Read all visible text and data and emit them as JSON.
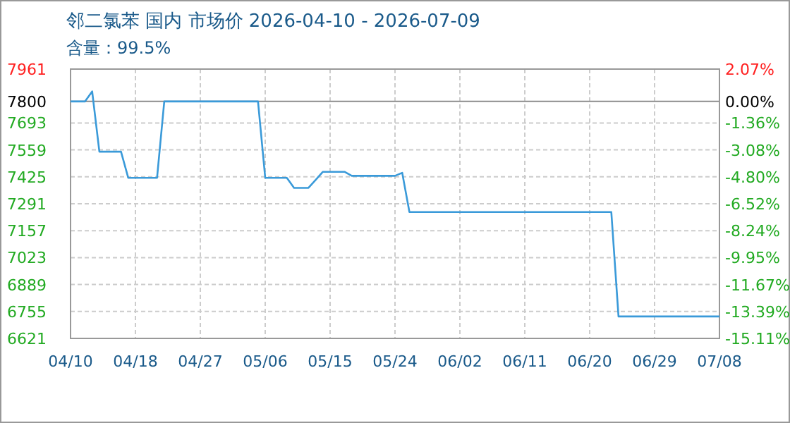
{
  "chart_data": {
    "type": "line",
    "title": "邻二氯苯 国内 市场价 2026-04-10 - 2026-07-09",
    "subtitle": "含量：99.5%",
    "categories": [
      "04/10",
      null,
      null,
      null,
      null,
      null,
      null,
      null,
      null,
      "04/18",
      null,
      null,
      null,
      null,
      null,
      null,
      null,
      null,
      "04/27",
      null,
      null,
      null,
      null,
      null,
      null,
      null,
      null,
      "05/06",
      null,
      null,
      null,
      null,
      null,
      null,
      null,
      null,
      "05/15",
      null,
      null,
      null,
      null,
      null,
      null,
      null,
      null,
      "05/24",
      null,
      null,
      null,
      null,
      null,
      null,
      null,
      null,
      "06/02",
      null,
      null,
      null,
      null,
      null,
      null,
      null,
      null,
      "06/11",
      null,
      null,
      null,
      null,
      null,
      null,
      null,
      null,
      "06/20",
      null,
      null,
      null,
      null,
      null,
      null,
      null,
      null,
      "06/29",
      null,
      null,
      null,
      null,
      null,
      null,
      null,
      null,
      "07/08"
    ],
    "series": [
      {
        "color": "#3a9ad9",
        "values": [
          7800,
          7800,
          7800,
          7850,
          7550,
          7550,
          7550,
          7550,
          7420,
          7420,
          7420,
          7420,
          7420,
          7800,
          7800,
          7800,
          7800,
          7800,
          7800,
          7800,
          7800,
          7800,
          7800,
          7800,
          7800,
          7800,
          7800,
          7420,
          7420,
          7420,
          7420,
          7370,
          7370,
          7370,
          7410,
          7450,
          7450,
          7450,
          7450,
          7430,
          7430,
          7430,
          7430,
          7430,
          7430,
          7430,
          7445,
          7250,
          7250,
          7250,
          7250,
          7250,
          7250,
          7250,
          7250,
          7250,
          7250,
          7250,
          7250,
          7250,
          7250,
          7250,
          7250,
          7250,
          7250,
          7250,
          7250,
          7250,
          7250,
          7250,
          7250,
          7250,
          7250,
          7250,
          7250,
          7250,
          6730,
          6730,
          6730,
          6730,
          6730,
          6730,
          6730,
          6730,
          6730,
          6730,
          6730,
          6730,
          6730,
          6730,
          6730
        ]
      }
    ],
    "ylim": [
      6621,
      7961
    ],
    "yticks": [
      6621,
      6755,
      6889,
      7023,
      7157,
      7291,
      7425,
      7559,
      7693,
      7800,
      7961
    ],
    "y2lim": [
      -15.11,
      2.07
    ],
    "y2ticks": [
      {
        "value": -15.11,
        "label": "-15.11%"
      },
      {
        "value": -13.39,
        "label": "-13.39%"
      },
      {
        "value": -11.67,
        "label": "-11.67%"
      },
      {
        "value": -9.95,
        "label": "-9.95%"
      },
      {
        "value": -8.24,
        "label": "-8.24%"
      },
      {
        "value": -6.52,
        "label": "-6.52%"
      },
      {
        "value": -4.8,
        "label": "-4.80%"
      },
      {
        "value": -3.08,
        "label": "-3.08%"
      },
      {
        "value": -1.36,
        "label": "-1.36%"
      },
      {
        "value": 0,
        "label": "0.00%"
      },
      {
        "value": 2.07,
        "label": "2.07%"
      }
    ],
    "ref_lines": [
      {
        "axis": "y",
        "value": 7800,
        "color": "#999999",
        "line_style": "solid"
      }
    ],
    "grid": true,
    "marker": "none",
    "line_style": "solid"
  }
}
